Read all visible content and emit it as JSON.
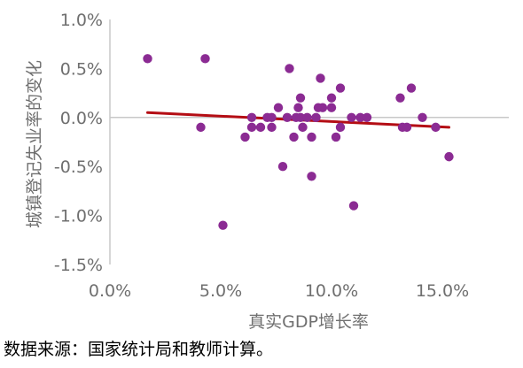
{
  "chart_data": {
    "type": "scatter",
    "title": "",
    "xlabel": "真实GDP增长率",
    "ylabel": "城镇登记失业率的变化",
    "xlim": [
      0,
      0.18
    ],
    "ylim": [
      -0.015,
      0.01
    ],
    "x_ticks": [
      0,
      0.05,
      0.1,
      0.15
    ],
    "x_tick_labels": [
      "0.0%",
      "5.0%",
      "10.0%",
      "15.0%"
    ],
    "y_ticks": [
      0.01,
      0.005,
      0,
      -0.005,
      -0.01,
      -0.015
    ],
    "y_tick_labels": [
      "1.0%",
      "0.5%",
      "0.0%",
      "-0.5%",
      "-1.0%",
      "-1.5%"
    ],
    "grid": false,
    "colors": {
      "points": "#8b2b93",
      "trendline": "#b40d14",
      "axis": "#c8c8c8",
      "text": "#6f6f6f"
    },
    "series": [
      {
        "points": [
          [
            0.017,
            0.006
          ],
          [
            0.041,
            -0.001
          ],
          [
            0.043,
            0.006
          ],
          [
            0.051,
            -0.011
          ],
          [
            0.061,
            -0.002
          ],
          [
            0.064,
            0.0
          ],
          [
            0.064,
            -0.001
          ],
          [
            0.068,
            -0.001
          ],
          [
            0.071,
            0.0
          ],
          [
            0.073,
            0.0
          ],
          [
            0.073,
            -0.001
          ],
          [
            0.076,
            0.001
          ],
          [
            0.078,
            -0.005
          ],
          [
            0.08,
            0.0
          ],
          [
            0.081,
            0.005
          ],
          [
            0.083,
            -0.002
          ],
          [
            0.084,
            0.0
          ],
          [
            0.085,
            0.001
          ],
          [
            0.086,
            0.002
          ],
          [
            0.086,
            0.0
          ],
          [
            0.087,
            -0.001
          ],
          [
            0.089,
            0.0
          ],
          [
            0.091,
            -0.002
          ],
          [
            0.091,
            -0.006
          ],
          [
            0.093,
            0.0
          ],
          [
            0.094,
            0.001
          ],
          [
            0.095,
            0.004
          ],
          [
            0.096,
            0.001
          ],
          [
            0.1,
            0.001
          ],
          [
            0.1,
            0.002
          ],
          [
            0.102,
            -0.002
          ],
          [
            0.104,
            -0.001
          ],
          [
            0.104,
            0.003
          ],
          [
            0.109,
            0.0
          ],
          [
            0.11,
            -0.009
          ],
          [
            0.113,
            0.0
          ],
          [
            0.116,
            0.0
          ],
          [
            0.131,
            0.002
          ],
          [
            0.132,
            -0.001
          ],
          [
            0.134,
            -0.001
          ],
          [
            0.136,
            0.003
          ],
          [
            0.141,
            0.0
          ],
          [
            0.147,
            -0.001
          ],
          [
            0.153,
            -0.004
          ]
        ]
      }
    ],
    "trendline": {
      "x": [
        0.017,
        0.153
      ],
      "y": [
        0.0005,
        -0.001
      ]
    }
  },
  "footer": {
    "source": "数据来源：国家统计局和教师计算。"
  }
}
